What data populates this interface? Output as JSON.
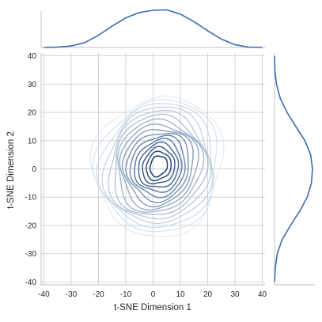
{
  "chart_data": {
    "type": "jointplot-kde",
    "xlabel": "t-SNE Dimension 1",
    "ylabel": "t-SNE Dimension 2",
    "xlim": [
      -41,
      41
    ],
    "ylim": [
      -41,
      41
    ],
    "xticks": [
      -40,
      -30,
      -20,
      -10,
      0,
      10,
      20,
      30,
      40
    ],
    "yticks": [
      -40,
      -30,
      -20,
      -10,
      0,
      10,
      20,
      30,
      40
    ],
    "grid": true,
    "center": [
      2,
      1
    ],
    "spread": {
      "sx": 14,
      "sy": 13
    },
    "contour_levels": 16,
    "marginal_x_density": {
      "x": [
        -40,
        -35,
        -30,
        -25,
        -20,
        -15,
        -10,
        -5,
        0,
        5,
        10,
        15,
        20,
        25,
        30,
        35,
        40
      ],
      "density": [
        0.0,
        0.01,
        0.04,
        0.13,
        0.32,
        0.56,
        0.78,
        0.92,
        0.98,
        0.99,
        0.88,
        0.68,
        0.44,
        0.22,
        0.07,
        0.01,
        0.0
      ]
    },
    "marginal_y_density": {
      "y": [
        -40,
        -35,
        -30,
        -25,
        -20,
        -15,
        -10,
        -5,
        0,
        5,
        10,
        15,
        20,
        25,
        30,
        35,
        40
      ],
      "density": [
        0.0,
        0.02,
        0.07,
        0.2,
        0.42,
        0.66,
        0.86,
        0.97,
        1.0,
        0.95,
        0.8,
        0.56,
        0.33,
        0.15,
        0.05,
        0.01,
        0.0
      ]
    },
    "colors": {
      "line": "#3b6cb0",
      "contour_dark": "#08306b",
      "contour_light": "#d6e6f4"
    }
  }
}
